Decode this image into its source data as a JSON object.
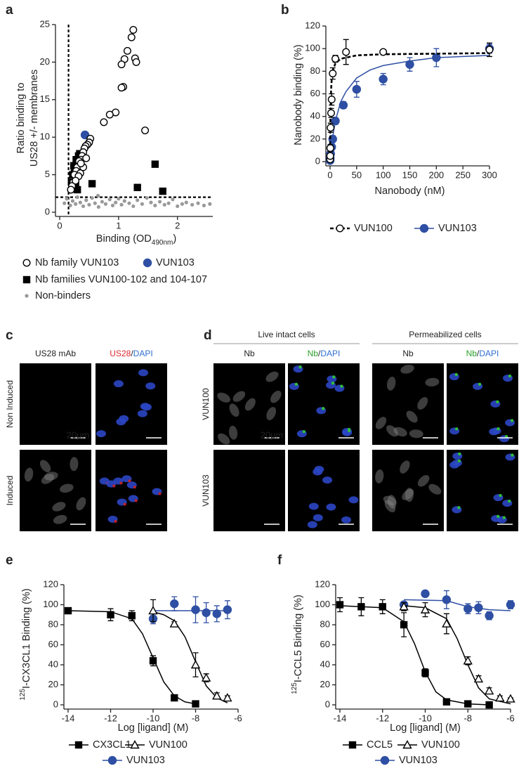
{
  "chart_data": [
    {
      "type": "scatter",
      "label": "a",
      "xlabel": {
        "text": "Binding (OD",
        "sub": "490nm",
        "tail": ")"
      },
      "ylabel": [
        "Ratio binding to",
        "US28 +/- membranes"
      ],
      "xlim": [
        0,
        2.6
      ],
      "xticks": [
        0,
        1,
        2
      ],
      "ylim": [
        0,
        25
      ],
      "yticks": [
        0,
        5,
        10,
        15,
        20,
        25
      ],
      "thresholds": {
        "x": 0.15,
        "y": 2
      },
      "series": [
        {
          "name": "Nb family VUN103",
          "marker": "circle-open",
          "color": "#000000",
          "x": [
            1.25,
            1.22,
            1.15,
            1.1,
            1.05,
            1.28,
            1.3,
            1.08,
            1.05,
            0.95,
            0.85,
            0.75,
            1.45,
            0.52,
            0.5,
            0.47,
            0.44,
            0.42,
            0.4,
            0.38,
            0.36,
            0.33,
            0.3,
            0.28,
            0.25,
            0.23,
            0.21,
            0.19,
            0.35,
            0.4,
            0.45,
            0.32,
            0.27,
            0.36
          ],
          "values": [
            24.3,
            23.3,
            21.5,
            20.4,
            19.7,
            20.5,
            20.0,
            16.7,
            16.6,
            13.3,
            13.0,
            12.0,
            10.9,
            9.8,
            9.3,
            9.0,
            8.8,
            8.5,
            8.0,
            7.5,
            7.0,
            6.8,
            6.0,
            5.5,
            5.0,
            4.0,
            3.5,
            3.0,
            5.2,
            6.0,
            7.2,
            4.8,
            4.2,
            6.5
          ]
        },
        {
          "name": "VUN103",
          "marker": "circle",
          "color": "#2e4fa3",
          "x": [
            0.43
          ],
          "values": [
            10.3
          ]
        },
        {
          "name": "Nb families VUN100-102 and 104-107",
          "marker": "square",
          "color": "#000000",
          "x": [
            0.3,
            0.25,
            0.28,
            0.32,
            0.35,
            0.2,
            0.22,
            0.27,
            0.3,
            0.55,
            1.32,
            1.62,
            1.75,
            0.34,
            0.24
          ],
          "values": [
            6.0,
            5.5,
            7.0,
            7.5,
            6.5,
            4.0,
            5.0,
            3.5,
            3.0,
            3.8,
            3.3,
            6.4,
            2.8,
            7.8,
            6.2
          ]
        },
        {
          "name": "Non-binders",
          "marker": "dot",
          "color": "#999999",
          "x": [
            0.08,
            0.12,
            0.18,
            0.22,
            0.27,
            0.3,
            0.35,
            0.4,
            0.45,
            0.5,
            0.55,
            0.6,
            0.66,
            0.72,
            0.78,
            0.85,
            0.9,
            0.95,
            1.0,
            1.05,
            1.1,
            1.18,
            1.25,
            1.32,
            1.4,
            1.48,
            1.55,
            1.62,
            1.7,
            1.78,
            1.85,
            1.92,
            2.0,
            2.08,
            2.15,
            2.25,
            2.35,
            2.45,
            2.55,
            0.65
          ],
          "values": [
            1.2,
            1.8,
            0.9,
            1.5,
            1.1,
            2.0,
            1.3,
            0.8,
            1.6,
            1.0,
            1.9,
            1.2,
            0.7,
            1.4,
            1.1,
            1.7,
            0.9,
            1.3,
            1.8,
            1.0,
            1.5,
            1.2,
            0.8,
            1.6,
            1.1,
            1.9,
            1.3,
            0.9,
            1.4,
            1.0,
            1.2,
            1.7,
            0.8,
            1.1,
            1.3,
            1.0,
            1.2,
            0.9,
            1.1,
            2.2
          ]
        }
      ]
    },
    {
      "type": "scatter",
      "label": "b",
      "xlabel": "Nanobody (nM)",
      "ylabel": "Nanobody binding (%)",
      "xlim": [
        0,
        300
      ],
      "xticks": [
        0,
        50,
        100,
        150,
        200,
        250,
        300
      ],
      "ylim": [
        0,
        120
      ],
      "yticks": [
        0,
        20,
        40,
        60,
        80,
        100,
        120
      ],
      "series": [
        {
          "name": "VUN100",
          "marker": "circle-open",
          "color": "#000000",
          "line_style": "dashed",
          "x": [
            0.1,
            0.3,
            0.5,
            1,
            2,
            3,
            5,
            10,
            30,
            100,
            300
          ],
          "values": [
            2,
            5,
            12,
            30,
            43,
            55,
            78,
            91,
            97,
            97,
            99
          ],
          "errors": [
            2,
            2,
            3,
            4,
            4,
            5,
            5,
            3,
            11,
            2,
            6
          ],
          "fit": {
            "x": [
              0,
              0.5,
              1,
              2,
              3,
              5,
              10,
              20,
              50,
              100,
              300
            ],
            "values": [
              0,
              31,
              48,
              64,
              72,
              80,
              87,
              91,
              94,
              95,
              96
            ]
          }
        },
        {
          "name": "VUN103",
          "marker": "circle",
          "color": "#2e4fa3",
          "line_style": "solid",
          "x": [
            0.1,
            0.3,
            1,
            3,
            5,
            10,
            25,
            50,
            100,
            150,
            200,
            300
          ],
          "values": [
            1,
            3,
            7,
            13,
            20,
            36,
            50,
            64,
            73,
            86,
            92,
            100
          ],
          "errors": [
            1,
            2,
            2,
            3,
            3,
            3,
            3,
            7,
            5,
            6,
            8,
            4
          ],
          "fit": {
            "x": [
              0,
              5,
              10,
              20,
              30,
              50,
              75,
              100,
              150,
              200,
              250,
              300
            ],
            "values": [
              0,
              22,
              36,
              53,
              62,
              74,
              81,
              85,
              89,
              92,
              93,
              94
            ]
          }
        }
      ]
    },
    {
      "type": "scatter",
      "label": "e",
      "xlabel": "Log [ligand] (M)",
      "ylabel": {
        "sup": "125",
        "text": "I-CX3CL1 Binding (%)"
      },
      "xlim": [
        -14,
        -6
      ],
      "xticks": [
        -14,
        -12,
        -10,
        -8,
        -6
      ],
      "ylim": [
        0,
        120
      ],
      "yticks": [
        0,
        20,
        40,
        60,
        80,
        100,
        120
      ],
      "series": [
        {
          "name": "CX3CL1",
          "marker": "square",
          "color": "#000000",
          "line_style": "solid",
          "x": [
            -14,
            -12,
            -11,
            -10,
            -9,
            -8
          ],
          "values": [
            94,
            90,
            89,
            44,
            7,
            1
          ],
          "errors": [
            3,
            6,
            5,
            5,
            1,
            1
          ],
          "fit": {
            "x": [
              -14,
              -12,
              -11,
              -10.5,
              -10,
              -9.5,
              -9,
              -8.5,
              -8
            ],
            "values": [
              94,
              93,
              86,
              71,
              47,
              23,
              9,
              3,
              1
            ]
          }
        },
        {
          "name": "VUN100",
          "marker": "triangle-open",
          "color": "#000000",
          "line_style": "solid",
          "x": [
            -10,
            -9,
            -8,
            -7.5,
            -7,
            -6.5
          ],
          "values": [
            94,
            81,
            40,
            27,
            9,
            7
          ],
          "errors": [
            11,
            2,
            12,
            4,
            3,
            2
          ],
          "fit": {
            "x": [
              -10,
              -9.5,
              -9,
              -8.5,
              -8,
              -7.5,
              -7,
              -6.5
            ],
            "values": [
              93,
              90,
              84,
              68,
              43,
              19,
              7,
              2
            ]
          }
        },
        {
          "name": "VUN103",
          "marker": "circle",
          "color": "#2e4fa3",
          "line_style": "solid",
          "x": [
            -10,
            -9,
            -8,
            -7.5,
            -7,
            -6.5
          ],
          "values": [
            86,
            101,
            95,
            92,
            91,
            95
          ],
          "errors": [
            5,
            7,
            13,
            10,
            8,
            9
          ],
          "fit": {
            "x": [
              -10,
              -6.5
            ],
            "values": [
              94,
              94
            ]
          }
        }
      ]
    },
    {
      "type": "scatter",
      "label": "f",
      "xlabel": "Log [ligand] (M)",
      "ylabel": {
        "sup": "125",
        "text": "I-CCL5 Binding (%)"
      },
      "xlim": [
        -14,
        -6
      ],
      "xticks": [
        -14,
        -12,
        -10,
        -8,
        -6
      ],
      "ylim": [
        0,
        120
      ],
      "yticks": [
        0,
        20,
        40,
        60,
        80,
        100,
        120
      ],
      "series": [
        {
          "name": "CCL5",
          "marker": "square",
          "color": "#000000",
          "line_style": "solid",
          "x": [
            -14,
            -13,
            -12,
            -11,
            -10,
            -9,
            -8,
            -7
          ],
          "values": [
            100,
            98,
            98,
            80,
            32,
            3,
            1,
            0
          ],
          "errors": [
            7,
            9,
            7,
            12,
            4,
            1,
            1,
            1
          ],
          "fit": {
            "x": [
              -14,
              -12,
              -11,
              -10.5,
              -10,
              -9.5,
              -9,
              -8,
              -7
            ],
            "values": [
              99,
              97,
              83,
              61,
              33,
              13,
              5,
              1,
              0
            ]
          }
        },
        {
          "name": "VUN100",
          "marker": "triangle-open",
          "color": "#000000",
          "line_style": "solid",
          "x": [
            -11,
            -10,
            -9,
            -8,
            -7.5,
            -7,
            -6.5,
            -6
          ],
          "values": [
            98,
            95,
            81,
            44,
            26,
            14,
            7,
            6
          ],
          "errors": [
            4,
            7,
            10,
            4,
            3,
            3,
            2,
            1
          ],
          "fit": {
            "x": [
              -11,
              -10,
              -9,
              -8.5,
              -8,
              -7.5,
              -7,
              -6
            ],
            "values": [
              99,
              97,
              86,
              66,
              40,
              17,
              6,
              1
            ]
          }
        },
        {
          "name": "VUN103",
          "marker": "circle",
          "color": "#2e4fa3",
          "line_style": "solid",
          "x": [
            -11,
            -10,
            -9,
            -8,
            -7.5,
            -7,
            -6
          ],
          "values": [
            100,
            111,
            105,
            96,
            97,
            89,
            100
          ],
          "errors": [
            3,
            3,
            9,
            5,
            6,
            4,
            4
          ],
          "fit": {
            "x": [
              -11,
              -9,
              -8,
              -7,
              -6
            ],
            "values": [
              105,
              104,
              98,
              95,
              94
            ]
          }
        }
      ]
    }
  ],
  "images": {
    "c": {
      "label": "c",
      "columns": [
        "US28 mAb",
        {
          "red": "US28",
          "plain": "/",
          "blue": "DAPI"
        }
      ],
      "rows": [
        "Non Induced",
        "Induced"
      ],
      "scale_bar": "20μm"
    },
    "d": {
      "label": "d",
      "groups": [
        "Live intact cells",
        "Permeabilized cells"
      ],
      "columns": [
        "Nb",
        {
          "green": "Nb",
          "plain": "/",
          "blue": "DAPI"
        }
      ],
      "rows": [
        "VUN100",
        "VUN103"
      ],
      "scale_bar": "20μm"
    }
  }
}
